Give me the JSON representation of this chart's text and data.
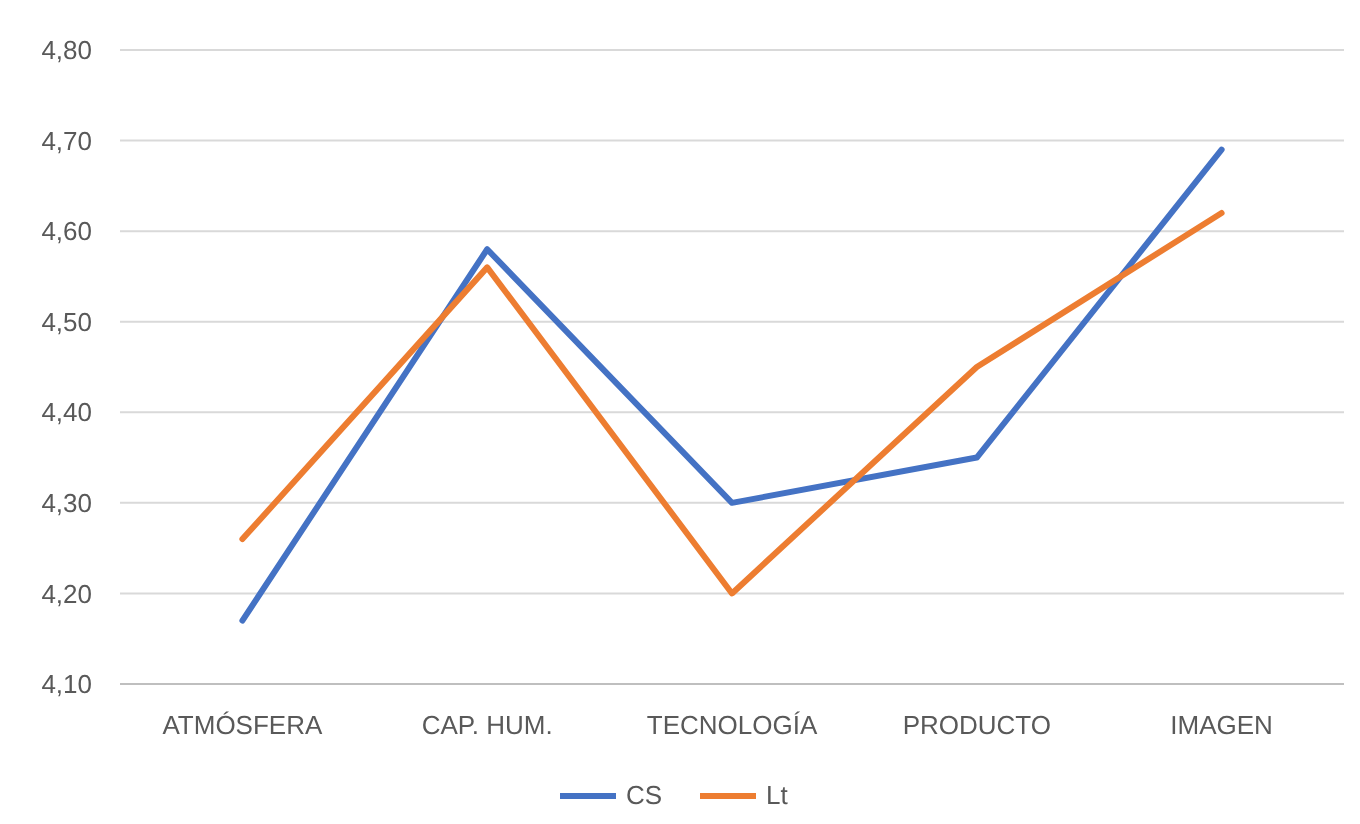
{
  "chart_data": {
    "type": "line",
    "categories": [
      "ATMÓSFERA",
      "CAP. HUM.",
      "TECNOLOGÍA",
      "PRODUCTO",
      "IMAGEN"
    ],
    "series": [
      {
        "name": "CS",
        "color": "#4472c4",
        "values": [
          4.17,
          4.58,
          4.3,
          4.35,
          4.69
        ]
      },
      {
        "name": "Lt",
        "color": "#ed7d31",
        "values": [
          4.26,
          4.56,
          4.2,
          4.45,
          4.62
        ]
      }
    ],
    "ylim": [
      4.1,
      4.8
    ],
    "yticks": [
      {
        "value": 4.1,
        "label": "4,10"
      },
      {
        "value": 4.2,
        "label": "4,20"
      },
      {
        "value": 4.3,
        "label": "4,30"
      },
      {
        "value": 4.4,
        "label": "4,40"
      },
      {
        "value": 4.5,
        "label": "4,50"
      },
      {
        "value": 4.6,
        "label": "4,60"
      },
      {
        "value": 4.7,
        "label": "4,70"
      },
      {
        "value": 4.8,
        "label": "4,80"
      }
    ],
    "grid": "y",
    "legend": "bottom",
    "marker": "none",
    "line_style": "solid"
  }
}
